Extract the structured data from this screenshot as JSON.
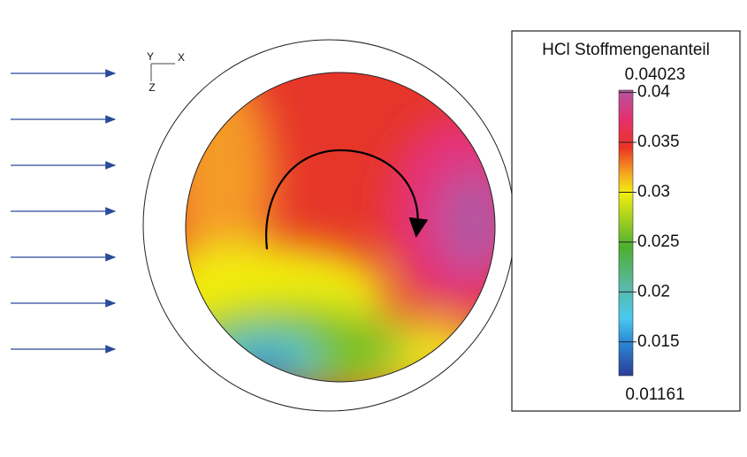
{
  "orientation": {
    "y": "Y",
    "x": "X",
    "z": "Z"
  },
  "legend": {
    "title": "HCl Stoffmengenanteil",
    "max": 0.04023,
    "min": 0.01161,
    "ticks": [
      0.04,
      0.035,
      0.03,
      0.025,
      0.02,
      0.015
    ]
  }
}
